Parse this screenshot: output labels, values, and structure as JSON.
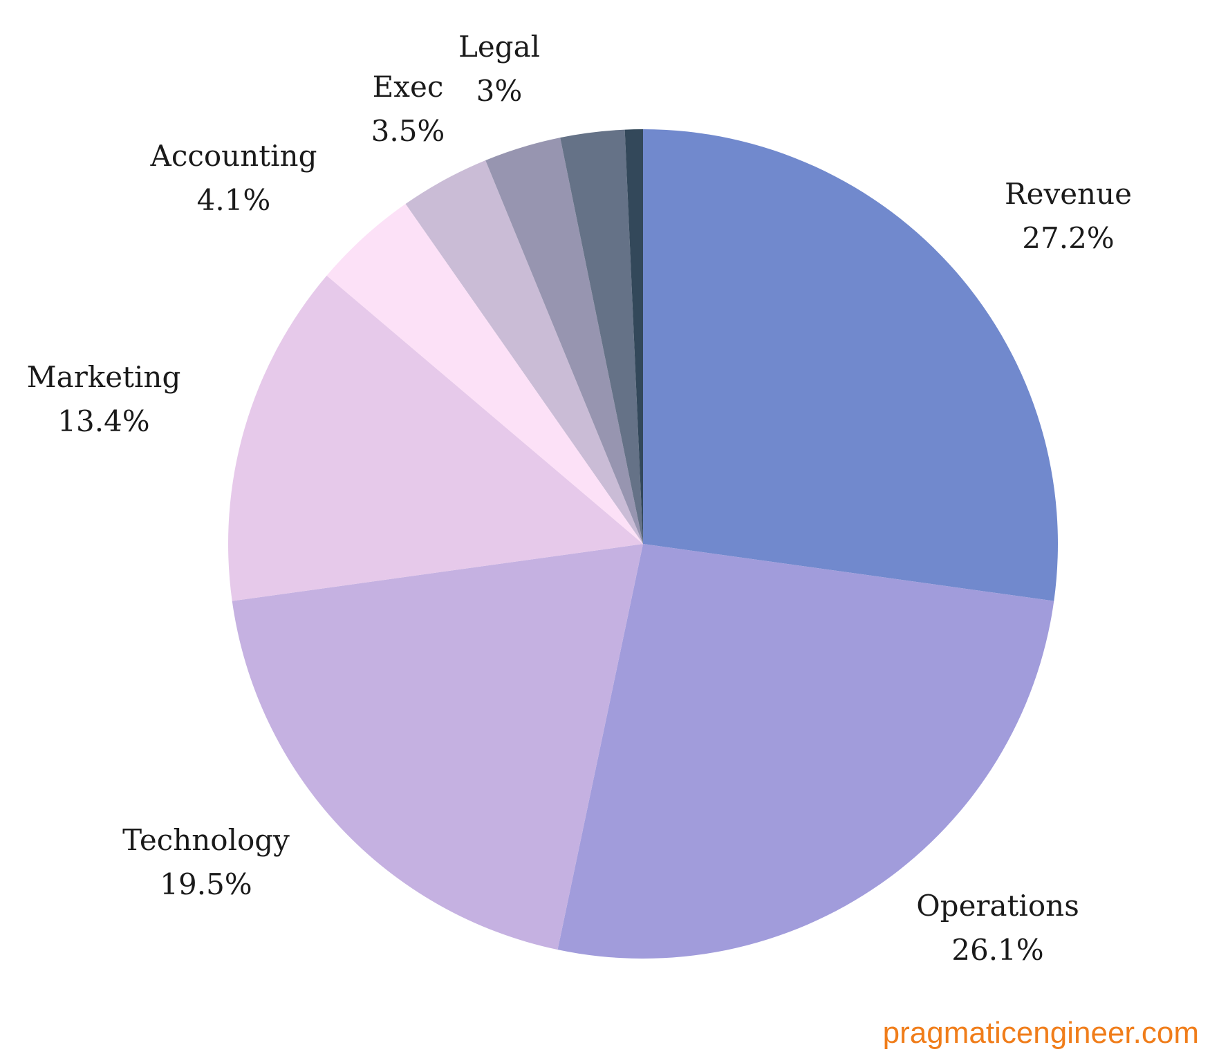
{
  "chart_data": {
    "type": "pie",
    "title": "",
    "start_angle_deg": 0,
    "direction": "clockwise",
    "slices": [
      {
        "label": "Revenue",
        "value": 27.2,
        "display": "27.2%",
        "color": "#7189cd"
      },
      {
        "label": "Operations",
        "value": 26.1,
        "display": "26.1%",
        "color": "#a19cdb"
      },
      {
        "label": "Technology",
        "value": 19.5,
        "display": "19.5%",
        "color": "#c5b1e1"
      },
      {
        "label": "Marketing",
        "value": 13.4,
        "display": "13.4%",
        "color": "#e6c9ea"
      },
      {
        "label": "Accounting",
        "value": 4.1,
        "display": "4.1%",
        "color": "#fce1f7"
      },
      {
        "label": "Exec",
        "value": 3.5,
        "display": "3.5%",
        "color": "#cabcd6"
      },
      {
        "label": "Legal",
        "value": 3.0,
        "display": "3%",
        "color": "#9795b0"
      },
      {
        "label": "",
        "value": 2.5,
        "display": "",
        "color": "#657287"
      },
      {
        "label": "",
        "value": 0.7,
        "display": "",
        "color": "#33485a"
      }
    ]
  },
  "watermark": "pragmaticengineer.com"
}
